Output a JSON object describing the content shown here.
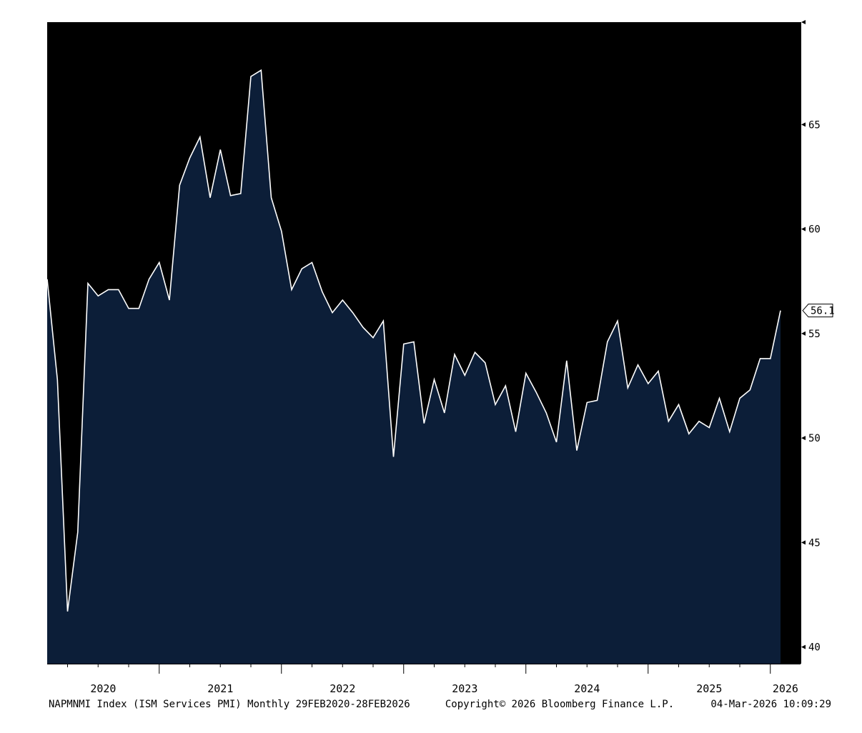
{
  "chart_data": {
    "type": "area",
    "series": [
      {
        "ticker": "NAPMNMI Index",
        "x": [
          "2020-02",
          "2020-03",
          "2020-04",
          "2020-05",
          "2020-06",
          "2020-07",
          "2020-08",
          "2020-09",
          "2020-10",
          "2020-11",
          "2020-12",
          "2021-01",
          "2021-02",
          "2021-03",
          "2021-04",
          "2021-05",
          "2021-06",
          "2021-07",
          "2021-08",
          "2021-09",
          "2021-10",
          "2021-11",
          "2021-12",
          "2022-01",
          "2022-02",
          "2022-03",
          "2022-04",
          "2022-05",
          "2022-06",
          "2022-07",
          "2022-08",
          "2022-09",
          "2022-10",
          "2022-11",
          "2022-12",
          "2023-01",
          "2023-02",
          "2023-03",
          "2023-04",
          "2023-05",
          "2023-06",
          "2023-07",
          "2023-08",
          "2023-09",
          "2023-10",
          "2023-11",
          "2023-12",
          "2024-01",
          "2024-02",
          "2024-03",
          "2024-04",
          "2024-05",
          "2024-06",
          "2024-07",
          "2024-08",
          "2024-09",
          "2024-10",
          "2024-11",
          "2024-12",
          "2025-01",
          "2025-02",
          "2025-03",
          "2025-04",
          "2025-05",
          "2025-06",
          "2025-07",
          "2025-08",
          "2025-09",
          "2025-10",
          "2025-11",
          "2025-12",
          "2026-01",
          "2026-02"
        ],
        "values": [
          57.6,
          52.8,
          41.7,
          45.5,
          57.4,
          56.8,
          57.1,
          57.1,
          56.2,
          56.2,
          57.6,
          58.4,
          56.6,
          62.1,
          63.4,
          64.4,
          61.5,
          63.8,
          61.6,
          61.7,
          67.3,
          67.6,
          61.5,
          59.9,
          57.1,
          58.1,
          58.4,
          57.0,
          56.0,
          56.6,
          56.0,
          55.3,
          54.8,
          55.6,
          49.1,
          54.5,
          54.6,
          50.7,
          52.8,
          51.2,
          54.0,
          53.0,
          54.1,
          53.6,
          51.6,
          52.5,
          50.3,
          53.1,
          52.2,
          51.2,
          49.8,
          53.7,
          49.4,
          51.7,
          51.8,
          54.6,
          55.6,
          52.4,
          53.5,
          52.6,
          53.2,
          50.8,
          51.6,
          50.2,
          50.8,
          50.5,
          51.9,
          50.3,
          51.9,
          52.3,
          53.8,
          53.8,
          56.1
        ]
      }
    ],
    "y_ticks": [
      "40",
      "45",
      "50",
      "55",
      "60",
      "65"
    ],
    "ylim": [
      39.2,
      69.9
    ],
    "x_year_labels": [
      "2020",
      "2021",
      "2022",
      "2023",
      "2024",
      "2025",
      "2026"
    ],
    "last_value_label": "56.1",
    "grid": false,
    "colors": {
      "background": "#000000",
      "fill": "#0c1e38",
      "line": "#ffffff",
      "page": "#ffffff"
    }
  },
  "footer": {
    "left": "NAPMNMI Index (ISM Services PMI) Monthly 29FEB2020-28FEB2026",
    "center": "Copyright© 2026 Bloomberg Finance L.P.",
    "right": "04-Mar-2026 10:09:29"
  }
}
